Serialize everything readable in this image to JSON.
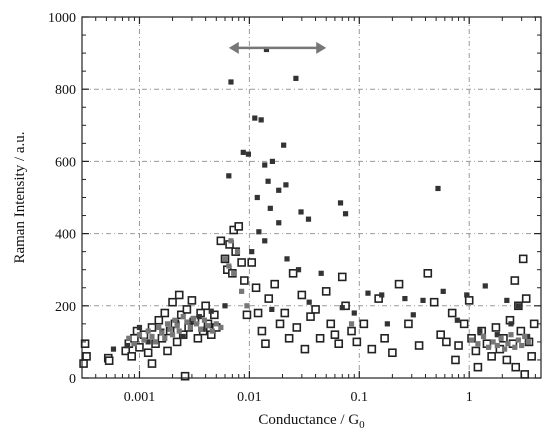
{
  "chart_data": {
    "type": "scatter",
    "xlabel": "Conductance / G",
    "xlabel_sub": "0",
    "ylabel": "Raman Intensity / a.u.",
    "xscale": "log",
    "xlim": [
      0.0003,
      4.5
    ],
    "ylim": [
      0,
      1000
    ],
    "x_ticks": [
      {
        "value": 0.001,
        "label": "0.001"
      },
      {
        "value": 0.01,
        "label": "0.01"
      },
      {
        "value": 0.1,
        "label": "0.1"
      },
      {
        "value": 1,
        "label": "1"
      }
    ],
    "y_ticks": [
      {
        "value": 0,
        "label": "0"
      },
      {
        "value": 200,
        "label": "200"
      },
      {
        "value": 400,
        "label": "400"
      },
      {
        "value": 600,
        "label": "600"
      },
      {
        "value": 800,
        "label": "800"
      },
      {
        "value": 1000,
        "label": "1000"
      }
    ],
    "grid": true,
    "annotation": {
      "type": "double-arrow",
      "x_start": 0.0065,
      "x_end": 0.05,
      "y": 945,
      "color": "#777777"
    },
    "series": [
      {
        "marker": "open-square",
        "color": "#222222",
        "points": [
          [
            0.00032,
            95
          ],
          [
            0.00033,
            60
          ],
          [
            0.00031,
            40
          ],
          [
            0.00052,
            55
          ],
          [
            0.00053,
            48
          ],
          [
            0.00075,
            75
          ],
          [
            0.0008,
            95
          ],
          [
            0.00085,
            60
          ],
          [
            0.0009,
            110
          ],
          [
            0.00095,
            130
          ],
          [
            0.001,
            85
          ],
          [
            0.0011,
            120
          ],
          [
            0.0012,
            70
          ],
          [
            0.0013,
            140
          ],
          [
            0.0014,
            95
          ],
          [
            0.0015,
            160
          ],
          [
            0.0016,
            110
          ],
          [
            0.0017,
            180
          ],
          [
            0.0018,
            75
          ],
          [
            0.0019,
            130
          ],
          [
            0.002,
            210
          ],
          [
            0.0021,
            150
          ],
          [
            0.0022,
            100
          ],
          [
            0.0023,
            230
          ],
          [
            0.0024,
            175
          ],
          [
            0.0025,
            120
          ],
          [
            0.0026,
            5
          ],
          [
            0.0027,
            190
          ],
          [
            0.0028,
            140
          ],
          [
            0.003,
            215
          ],
          [
            0.0032,
            160
          ],
          [
            0.0034,
            110
          ],
          [
            0.0036,
            180
          ],
          [
            0.0038,
            130
          ],
          [
            0.004,
            200
          ],
          [
            0.0042,
            150
          ],
          [
            0.0045,
            120
          ],
          [
            0.0048,
            175
          ],
          [
            0.005,
            140
          ],
          [
            0.0055,
            380
          ],
          [
            0.006,
            330
          ],
          [
            0.0063,
            300
          ],
          [
            0.0066,
            370
          ],
          [
            0.007,
            290
          ],
          [
            0.0072,
            410
          ],
          [
            0.0075,
            350
          ],
          [
            0.008,
            420
          ],
          [
            0.0085,
            320
          ],
          [
            0.009,
            270
          ],
          [
            0.0095,
            175
          ],
          [
            0.0105,
            320
          ],
          [
            0.0115,
            250
          ],
          [
            0.012,
            180
          ],
          [
            0.013,
            130
          ],
          [
            0.014,
            95
          ],
          [
            0.015,
            220
          ],
          [
            0.017,
            260
          ],
          [
            0.019,
            150
          ],
          [
            0.021,
            180
          ],
          [
            0.023,
            110
          ],
          [
            0.025,
            290
          ],
          [
            0.027,
            140
          ],
          [
            0.03,
            230
          ],
          [
            0.032,
            80
          ],
          [
            0.036,
            170
          ],
          [
            0.04,
            190
          ],
          [
            0.044,
            110
          ],
          [
            0.05,
            240
          ],
          [
            0.055,
            150
          ],
          [
            0.06,
            120
          ],
          [
            0.065,
            95
          ],
          [
            0.07,
            280
          ],
          [
            0.075,
            200
          ],
          [
            0.085,
            130
          ],
          [
            0.095,
            100
          ],
          [
            0.11,
            150
          ],
          [
            0.13,
            80
          ],
          [
            0.15,
            220
          ],
          [
            0.17,
            110
          ],
          [
            0.2,
            70
          ],
          [
            0.23,
            260
          ],
          [
            0.28,
            150
          ],
          [
            0.35,
            90
          ],
          [
            0.42,
            290
          ],
          [
            0.48,
            210
          ],
          [
            0.55,
            120
          ],
          [
            0.62,
            100
          ],
          [
            0.7,
            180
          ],
          [
            0.8,
            90
          ],
          [
            0.9,
            150
          ],
          [
            1.05,
            110
          ],
          [
            1.15,
            75
          ],
          [
            1.3,
            130
          ],
          [
            1.45,
            95
          ],
          [
            1.6,
            60
          ],
          [
            1.75,
            140
          ],
          [
            1.9,
            80
          ],
          [
            2.05,
            110
          ],
          [
            2.2,
            50
          ],
          [
            2.35,
            160
          ],
          [
            2.5,
            95
          ],
          [
            2.65,
            30
          ],
          [
            2.8,
            200
          ],
          [
            2.95,
            130
          ],
          [
            3.1,
            330
          ],
          [
            3.3,
            220
          ],
          [
            3.5,
            100
          ],
          [
            3.7,
            60
          ],
          [
            3.9,
            150
          ],
          [
            3.2,
            10
          ],
          [
            1.2,
            30
          ],
          [
            2.6,
            270
          ],
          [
            1.0,
            215
          ],
          [
            0.75,
            50
          ],
          [
            0.0013,
            40
          ]
        ]
      },
      {
        "marker": "filled-square",
        "color": "#333333",
        "points": [
          [
            0.0068,
            820
          ],
          [
            0.0143,
            910
          ],
          [
            0.0265,
            830
          ],
          [
            0.0112,
            720
          ],
          [
            0.0128,
            715
          ],
          [
            0.0205,
            645
          ],
          [
            0.0088,
            625
          ],
          [
            0.0098,
            620
          ],
          [
            0.0162,
            600
          ],
          [
            0.0138,
            590
          ],
          [
            0.0065,
            560
          ],
          [
            0.0148,
            545
          ],
          [
            0.0215,
            535
          ],
          [
            0.0118,
            500
          ],
          [
            0.0185,
            520
          ],
          [
            0.0155,
            470
          ],
          [
            0.0185,
            430
          ],
          [
            0.0122,
            405
          ],
          [
            0.0138,
            380
          ],
          [
            0.0295,
            460
          ],
          [
            0.0345,
            440
          ],
          [
            0.0675,
            485
          ],
          [
            0.075,
            455
          ],
          [
            0.0105,
            350
          ],
          [
            0.022,
            330
          ],
          [
            0.028,
            300
          ],
          [
            0.045,
            290
          ],
          [
            0.52,
            525
          ],
          [
            0.26,
            220
          ],
          [
            0.16,
            230
          ],
          [
            0.12,
            235
          ],
          [
            0.38,
            215
          ],
          [
            0.58,
            240
          ],
          [
            0.95,
            230
          ],
          [
            1.4,
            255
          ],
          [
            2.2,
            215
          ],
          [
            2.8,
            200
          ],
          [
            0.07,
            195
          ],
          [
            0.09,
            180
          ],
          [
            0.035,
            210
          ],
          [
            0.016,
            190
          ],
          [
            0.006,
            200
          ],
          [
            0.0045,
            185
          ],
          [
            0.0035,
            170
          ],
          [
            0.0022,
            150
          ],
          [
            0.0016,
            130
          ],
          [
            0.0012,
            100
          ],
          [
            0.001,
            140
          ],
          [
            0.00078,
            90
          ],
          [
            0.00058,
            80
          ],
          [
            0.0025,
            115
          ],
          [
            0.003,
            160
          ],
          [
            0.0038,
            135
          ],
          [
            0.18,
            150
          ],
          [
            0.31,
            175
          ],
          [
            0.78,
            160
          ],
          [
            1.25,
            130
          ],
          [
            1.8,
            120
          ],
          [
            2.4,
            150
          ],
          [
            3.4,
            115
          ]
        ]
      },
      {
        "marker": "filled-square",
        "color": "#777777",
        "points": [
          [
            0.0008,
            110
          ],
          [
            0.0009,
            95
          ],
          [
            0.001,
            120
          ],
          [
            0.0011,
            105
          ],
          [
            0.0012,
            130
          ],
          [
            0.0013,
            115
          ],
          [
            0.0014,
            100
          ],
          [
            0.0015,
            140
          ],
          [
            0.0016,
            125
          ],
          [
            0.0017,
            110
          ],
          [
            0.0018,
            150
          ],
          [
            0.0019,
            135
          ],
          [
            0.002,
            120
          ],
          [
            0.0021,
            160
          ],
          [
            0.0022,
            145
          ],
          [
            0.0023,
            130
          ],
          [
            0.0025,
            170
          ],
          [
            0.0027,
            155
          ],
          [
            0.0029,
            140
          ],
          [
            0.0031,
            165
          ],
          [
            0.0033,
            150
          ],
          [
            0.0036,
            135
          ],
          [
            0.0039,
            160
          ],
          [
            0.0042,
            145
          ],
          [
            0.0046,
            130
          ],
          [
            0.005,
            150
          ],
          [
            0.0055,
            140
          ],
          [
            0.006,
            330
          ],
          [
            0.0065,
            310
          ],
          [
            0.0072,
            290
          ],
          [
            1.05,
            105
          ],
          [
            1.2,
            95
          ],
          [
            1.35,
            115
          ],
          [
            1.5,
            85
          ],
          [
            1.65,
            100
          ],
          [
            1.8,
            90
          ],
          [
            1.95,
            110
          ],
          [
            2.1,
            80
          ],
          [
            2.25,
            95
          ],
          [
            2.4,
            120
          ],
          [
            2.6,
            85
          ],
          [
            2.8,
            105
          ],
          [
            3.0,
            90
          ],
          [
            3.2,
            115
          ],
          [
            3.45,
            100
          ],
          [
            0.0068,
            380
          ],
          [
            0.0078,
            350
          ],
          [
            0.0085,
            240
          ],
          [
            0.0095,
            200
          ],
          [
            0.085,
            150
          ]
        ]
      }
    ]
  }
}
